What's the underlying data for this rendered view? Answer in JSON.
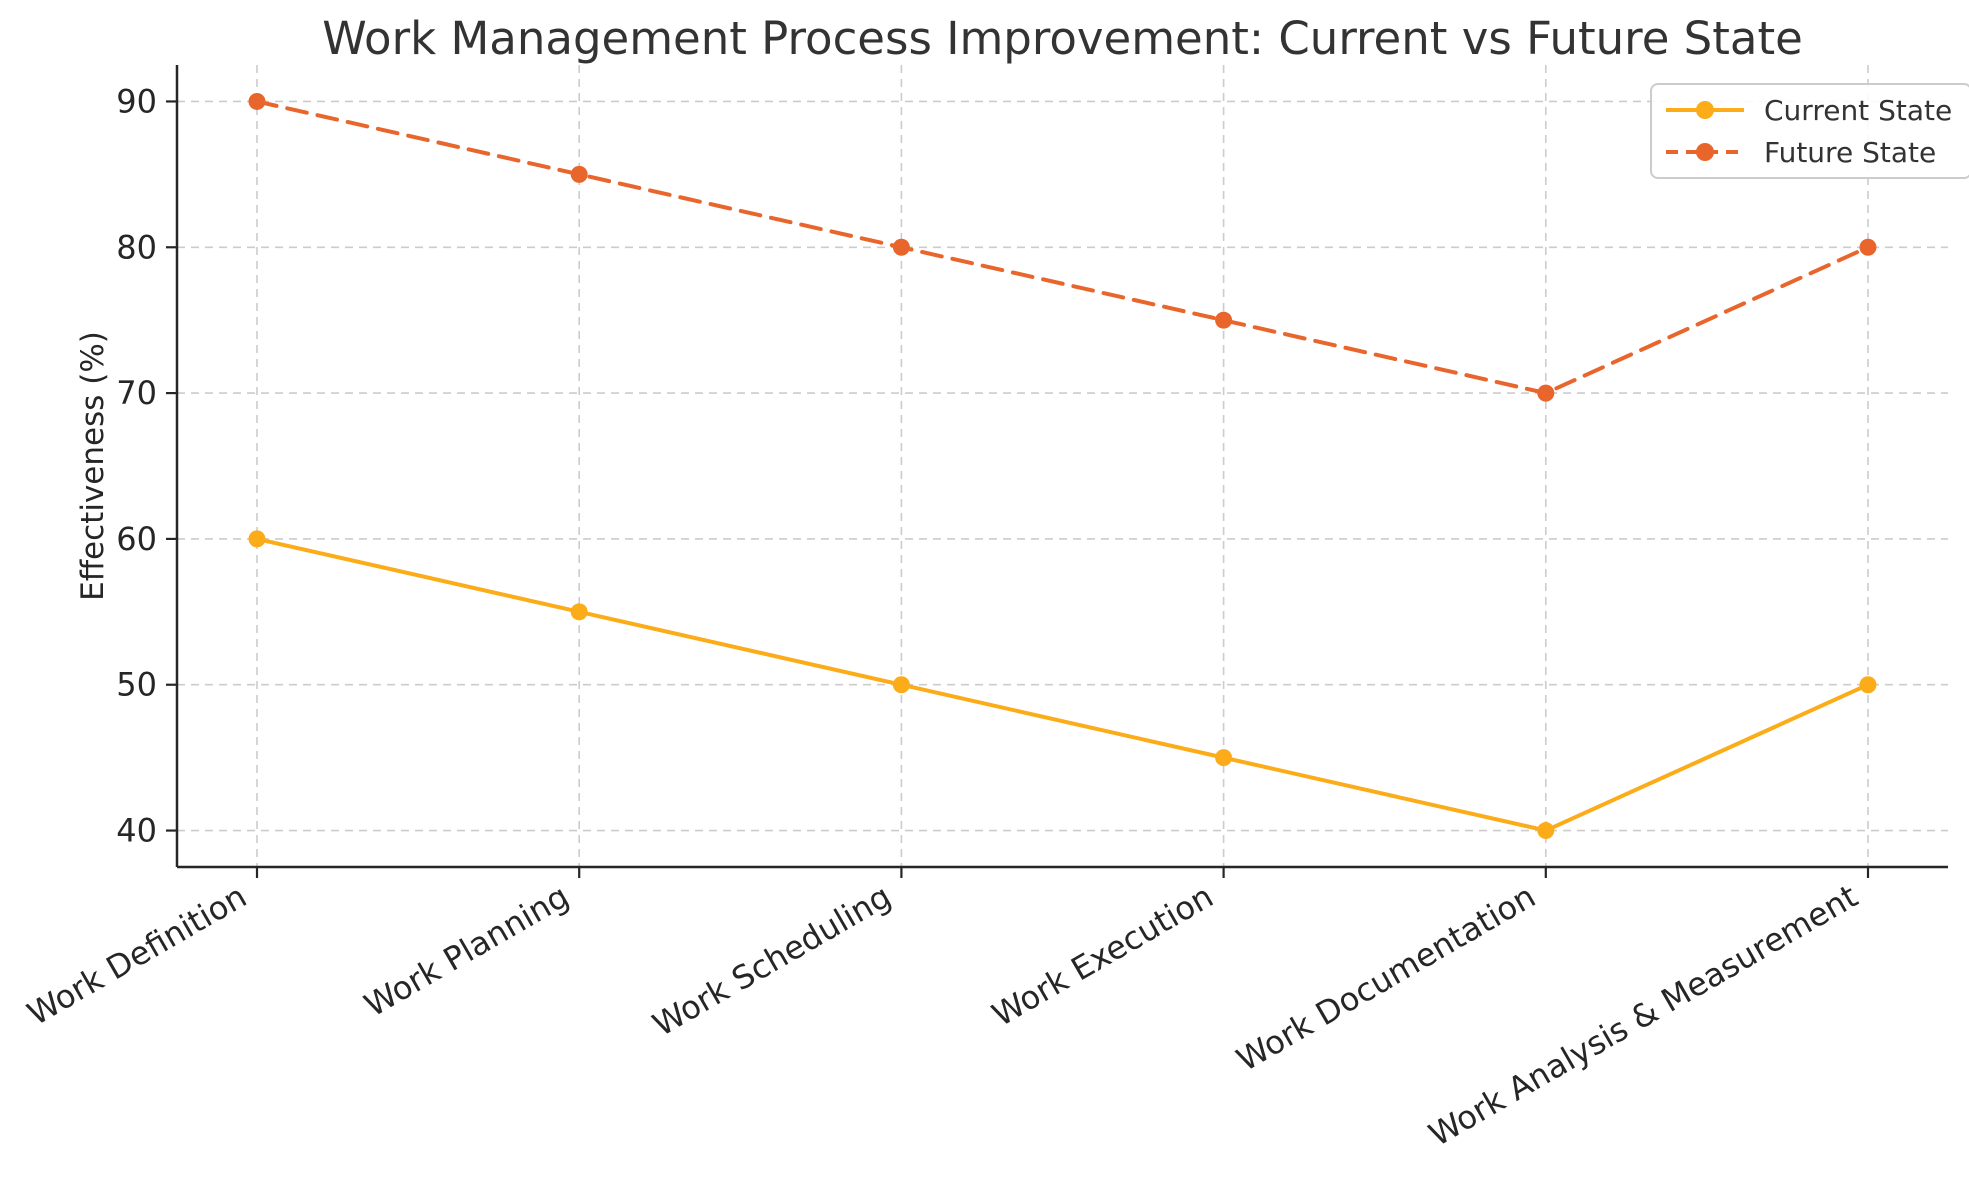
{
  "chart_data": {
    "type": "line",
    "title": "Work Management Process Improvement: Current vs Future State",
    "xlabel": "",
    "ylabel": "Effectiveness (%)",
    "categories": [
      "Work Definition",
      "Work Planning",
      "Work Scheduling",
      "Work Execution",
      "Work Documentation",
      "Work Analysis & Measurement"
    ],
    "series": [
      {
        "name": "Current State",
        "values": [
          60,
          55,
          50,
          45,
          40,
          50
        ],
        "color": "#FBAC18",
        "line_style": "solid",
        "marker": "circle"
      },
      {
        "name": "Future State",
        "values": [
          90,
          85,
          80,
          75,
          70,
          80
        ],
        "color": "#E8662C",
        "line_style": "dashed",
        "marker": "circle"
      }
    ],
    "yticks": [
      40,
      50,
      60,
      70,
      80,
      90
    ],
    "ylim": [
      37.5,
      92.5
    ],
    "grid": true,
    "grid_style": "dashed",
    "legend_position": "upper right",
    "x_tick_rotation_deg": 30
  },
  "style": {
    "background": "#ffffff",
    "grid_color": "#cccccc",
    "spine_color": "#262626",
    "tick_label_color": "#262626",
    "title_color": "#333333",
    "legend_border_color": "#cccccc",
    "legend_text_color": "#333333"
  }
}
